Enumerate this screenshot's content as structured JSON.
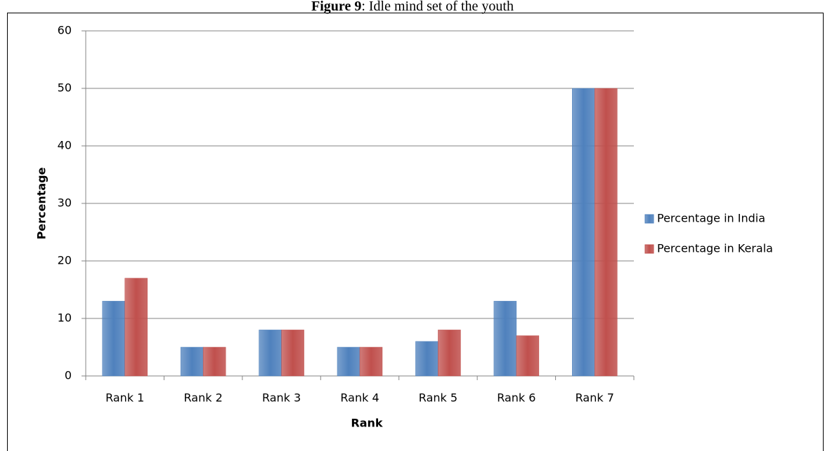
{
  "chart_data": {
    "type": "bar",
    "figure_label": "Figure 9",
    "title": ": Idle mind set of the youth",
    "x_label": "Rank",
    "y_label": "Percentage",
    "categories": [
      "Rank 1",
      "Rank 2",
      "Rank 3",
      "Rank 4",
      "Rank 5",
      "Rank 6",
      "Rank 7"
    ],
    "series": [
      {
        "name": "Percentage in India",
        "color": "#4f81bd",
        "values": [
          13,
          5,
          8,
          5,
          6,
          13,
          50
        ]
      },
      {
        "name": "Percentage in Kerala",
        "color": "#c0504d",
        "values": [
          17,
          5,
          8,
          5,
          8,
          7,
          50
        ]
      }
    ],
    "ylim": [
      0,
      60
    ],
    "yticks": [
      0,
      10,
      20,
      30,
      40,
      50,
      60
    ],
    "grid": true,
    "legend": "right"
  }
}
